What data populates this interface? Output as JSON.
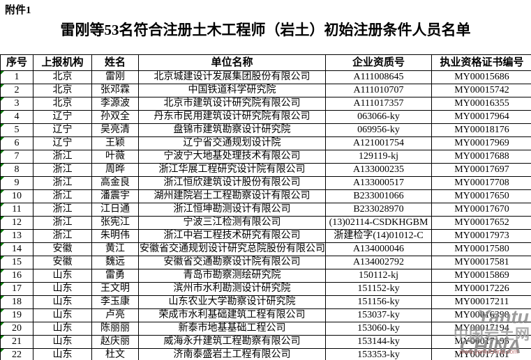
{
  "page": {
    "attachment_label": "附件1",
    "title": "雷刚等53名符合注册土木工程师（岩土）初始注册条件人员名单"
  },
  "table": {
    "columns": [
      "序号",
      "上报机构",
      "姓名",
      "单位名称",
      "企业资质号",
      "执业资格证书编号"
    ],
    "rows": [
      {
        "seq": "1",
        "agency": "北京",
        "name": "雷刚",
        "company": "北京城建设计发展集团股份有限公司",
        "qualification_no": "A111008645",
        "certificate_no": "MY00015686"
      },
      {
        "seq": "2",
        "agency": "北京",
        "name": "张邓霖",
        "company": "中国铁道科学研究院",
        "qualification_no": "A111010707",
        "certificate_no": "MY00015742"
      },
      {
        "seq": "3",
        "agency": "北京",
        "name": "李源波",
        "company": "北京市建筑设计研究院有限公司",
        "qualification_no": "A111017357",
        "certificate_no": "MY00016355"
      },
      {
        "seq": "4",
        "agency": "辽宁",
        "name": "孙双全",
        "company": "丹东市民用建筑设计研究院有限公司",
        "qualification_no": "063066-ky",
        "certificate_no": "MY00017964"
      },
      {
        "seq": "5",
        "agency": "辽宁",
        "name": "吴亮清",
        "company": "盘锦市建筑勘察设计研究院",
        "qualification_no": "069956-ky",
        "certificate_no": "MY00018176"
      },
      {
        "seq": "6",
        "agency": "辽宁",
        "name": "王颖",
        "company": "辽宁省交通规划设计院",
        "qualification_no": "A121001754",
        "certificate_no": "MY00017969"
      },
      {
        "seq": "7",
        "agency": "浙江",
        "name": "叶薇",
        "company": "宁波宁大地基处理技术有限公司",
        "qualification_no": "129119-kj",
        "certificate_no": "MY00017688"
      },
      {
        "seq": "8",
        "agency": "浙江",
        "name": "周晔",
        "company": "浙江华展工程研究设计院有限公司",
        "qualification_no": "A133000235",
        "certificate_no": "MY00017697"
      },
      {
        "seq": "9",
        "agency": "浙江",
        "name": "高金良",
        "company": "浙江恒欣建筑设计股份有限公司",
        "qualification_no": "A133000517",
        "certificate_no": "MY00017708"
      },
      {
        "seq": "10",
        "agency": "浙江",
        "name": "潘震宇",
        "company": "湖州建院岩土工程勘察设计有限公司",
        "qualification_no": "B233001066",
        "certificate_no": "MY00017650"
      },
      {
        "seq": "11",
        "agency": "浙江",
        "name": "江日通",
        "company": "浙江恒坤勘测设计有限公司",
        "qualification_no": "B233028970",
        "certificate_no": "MY00017670"
      },
      {
        "seq": "12",
        "agency": "浙江",
        "name": "张宪江",
        "company": "宁波三江检测有限公司",
        "qualification_no": "(13)02114-CSDKHGBM",
        "certificate_no": "MY00017652"
      },
      {
        "seq": "13",
        "agency": "浙江",
        "name": "朱明伟",
        "company": "浙江中岩工程技术研究有限公司",
        "qualification_no": "浙建检字(14)01012-C",
        "certificate_no": "MY00017973"
      },
      {
        "seq": "14",
        "agency": "安徽",
        "name": "黄江",
        "company": "安徽省交通规划设计研究总院股份有限公司",
        "qualification_no": "A134000046",
        "certificate_no": "MY00017580"
      },
      {
        "seq": "15",
        "agency": "安徽",
        "name": "魏远",
        "company": "安徽省交通勘察设计院有限公司",
        "qualification_no": "A134002792",
        "certificate_no": "MY00017581"
      },
      {
        "seq": "16",
        "agency": "山东",
        "name": "雷勇",
        "company": "青岛市勘察测绘研究院",
        "qualification_no": "150112-kj",
        "certificate_no": "MY00015869"
      },
      {
        "seq": "17",
        "agency": "山东",
        "name": "王文明",
        "company": "滨州市水利勘测设计研究院",
        "qualification_no": "151152-ky",
        "certificate_no": "MY00017226"
      },
      {
        "seq": "18",
        "agency": "山东",
        "name": "李玉康",
        "company": "山东农业大学勘察设计研究院",
        "qualification_no": "151156-ky",
        "certificate_no": "MY00017211"
      },
      {
        "seq": "19",
        "agency": "山东",
        "name": "卢亮",
        "company": "荣成市水利基础建筑工程有限公司",
        "qualification_no": "153037-ky",
        "certificate_no": "MY00016390"
      },
      {
        "seq": "20",
        "agency": "山东",
        "name": "陈丽丽",
        "company": "新泰市地基基础工程公司",
        "qualification_no": "153060-ky",
        "certificate_no": "MY00017194"
      },
      {
        "seq": "21",
        "agency": "山东",
        "name": "赵庆丽",
        "company": "威海永升建筑工程勘察有限公司",
        "qualification_no": "153144-ky",
        "certificate_no": "MY00017195"
      },
      {
        "seq": "22",
        "agency": "山东",
        "name": "杜文",
        "company": "济南泰盛岩土工程有限公司",
        "qualification_no": "153353-ky",
        "certificate_no": "MY00017161"
      }
    ]
  },
  "watermark": {
    "brand": "Yantu",
    "site_name": "中国岩土网",
    "country": "CHINA",
    "url": "www.yantuchina.com"
  },
  "colors": {
    "text": "#000000",
    "border": "#000000",
    "error_indicator_green": "#0a7d0a",
    "watermark_gray": "#8c8c8c",
    "watermark_url_red": "#be6e6e"
  }
}
